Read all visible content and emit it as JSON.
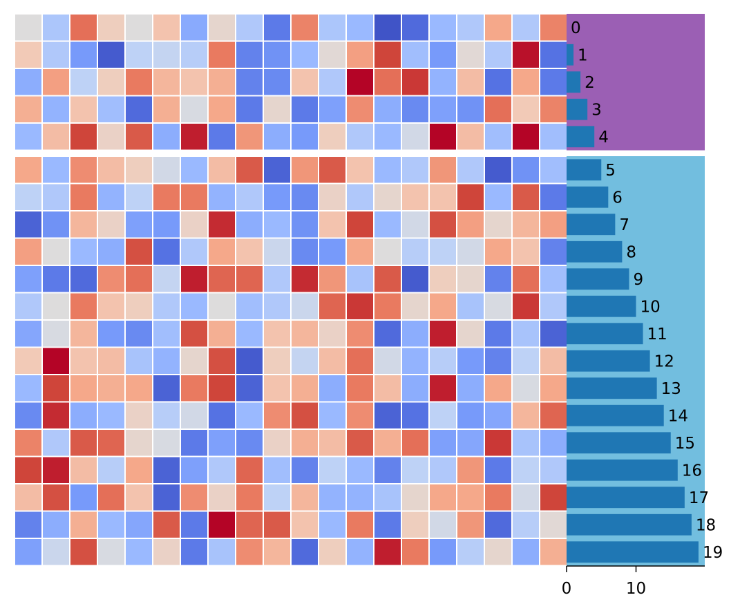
{
  "chart_data": [
    {
      "type": "heatmap",
      "title": "",
      "colormap": "coolwarm",
      "cell_border_color": "#ffffff",
      "n_rows": 20,
      "n_cols": 20,
      "value_range": [
        0,
        1
      ],
      "row_groups": [
        [
          0,
          4
        ],
        [
          5,
          19
        ]
      ],
      "values": [
        [
          0.5,
          0.35,
          0.82,
          0.58,
          0.5,
          0.62,
          0.25,
          0.54,
          0.36,
          0.12,
          0.78,
          0.35,
          0.3,
          0.02,
          0.08,
          0.3,
          0.36,
          0.7,
          0.36,
          0.78
        ],
        [
          0.6,
          0.36,
          0.2,
          0.04,
          0.4,
          0.42,
          0.38,
          0.8,
          0.14,
          0.18,
          0.3,
          0.52,
          0.72,
          0.9,
          0.32,
          0.2,
          0.52,
          0.36,
          0.98,
          0.1
        ],
        [
          0.26,
          0.72,
          0.4,
          0.58,
          0.8,
          0.66,
          0.62,
          0.68,
          0.14,
          0.16,
          0.62,
          0.36,
          1.0,
          0.82,
          0.92,
          0.28,
          0.64,
          0.1,
          0.7,
          0.12
        ],
        [
          0.68,
          0.28,
          0.62,
          0.32,
          0.08,
          0.68,
          0.48,
          0.7,
          0.12,
          0.54,
          0.12,
          0.22,
          0.76,
          0.26,
          0.16,
          0.22,
          0.18,
          0.82,
          0.6,
          0.78
        ],
        [
          0.3,
          0.64,
          0.9,
          0.56,
          0.86,
          0.26,
          0.96,
          0.12,
          0.74,
          0.26,
          0.2,
          0.58,
          0.36,
          0.3,
          0.46,
          1.0,
          0.64,
          0.32,
          1.0,
          0.32
        ]
      ]
    },
    {
      "type": "heatmap",
      "colormap": "coolwarm",
      "value_range": [
        0,
        1
      ],
      "values": [
        [
          0.7,
          0.3,
          0.76,
          0.64,
          0.58,
          0.46,
          0.3,
          0.64,
          0.86,
          0.06,
          0.74,
          0.86,
          0.62,
          0.3,
          0.36,
          0.74,
          0.36,
          0.04,
          0.18,
          0.32
        ],
        [
          0.4,
          0.36,
          0.8,
          0.28,
          0.4,
          0.8,
          0.8,
          0.28,
          0.36,
          0.2,
          0.16,
          0.56,
          0.36,
          0.54,
          0.62,
          0.62,
          0.9,
          0.3,
          0.86,
          0.12
        ],
        [
          0.06,
          0.18,
          0.66,
          0.56,
          0.22,
          0.2,
          0.56,
          0.94,
          0.26,
          0.3,
          0.18,
          0.62,
          0.9,
          0.3,
          0.46,
          0.88,
          0.72,
          0.54,
          0.66,
          0.72
        ],
        [
          0.72,
          0.5,
          0.3,
          0.26,
          0.88,
          0.1,
          0.36,
          0.7,
          0.62,
          0.44,
          0.16,
          0.2,
          0.7,
          0.5,
          0.38,
          0.4,
          0.46,
          0.7,
          0.62,
          0.14
        ],
        [
          0.22,
          0.12,
          0.08,
          0.76,
          0.82,
          0.42,
          0.96,
          0.84,
          0.84,
          0.36,
          0.94,
          0.74,
          0.34,
          0.86,
          0.04,
          0.58,
          0.54,
          0.14,
          0.82,
          0.32
        ],
        [
          0.36,
          0.5,
          0.8,
          0.62,
          0.58,
          0.36,
          0.3,
          0.5,
          0.32,
          0.36,
          0.44,
          0.84,
          0.92,
          0.8,
          0.54,
          0.7,
          0.34,
          0.48,
          0.92,
          0.36
        ],
        [
          0.24,
          0.48,
          0.66,
          0.2,
          0.16,
          0.32,
          0.88,
          0.68,
          0.3,
          0.62,
          0.66,
          0.56,
          0.76,
          0.08,
          0.26,
          0.96,
          0.54,
          0.12,
          0.34,
          0.06
        ],
        [
          0.6,
          1.0,
          0.62,
          0.64,
          0.34,
          0.28,
          0.54,
          0.88,
          0.04,
          0.58,
          0.42,
          0.64,
          0.82,
          0.46,
          0.28,
          0.38,
          0.2,
          0.14,
          0.4,
          0.64
        ],
        [
          0.3,
          0.9,
          0.7,
          0.68,
          0.7,
          0.06,
          0.8,
          0.9,
          0.06,
          0.62,
          0.68,
          0.26,
          0.8,
          0.64,
          0.26,
          0.96,
          0.26,
          0.7,
          0.48,
          0.7
        ],
        [
          0.16,
          0.94,
          0.26,
          0.3,
          0.56,
          0.38,
          0.46,
          0.1,
          0.3,
          0.76,
          0.88,
          0.3,
          0.76,
          0.06,
          0.1,
          0.4,
          0.2,
          0.24,
          0.66,
          0.84
        ],
        [
          0.78,
          0.36,
          0.86,
          0.84,
          0.54,
          0.48,
          0.12,
          0.22,
          0.16,
          0.56,
          0.68,
          0.64,
          0.86,
          0.68,
          0.82,
          0.22,
          0.24,
          0.92,
          0.34,
          0.26
        ],
        [
          0.9,
          0.96,
          0.64,
          0.38,
          0.7,
          0.06,
          0.22,
          0.36,
          0.84,
          0.32,
          0.14,
          0.4,
          0.3,
          0.14,
          0.4,
          0.36,
          0.74,
          0.12,
          0.4,
          0.36
        ],
        [
          0.64,
          0.88,
          0.2,
          0.82,
          0.62,
          0.06,
          0.76,
          0.56,
          0.8,
          0.4,
          0.66,
          0.28,
          0.28,
          0.34,
          0.54,
          0.7,
          0.7,
          0.8,
          0.46,
          0.9
        ],
        [
          0.14,
          0.26,
          0.68,
          0.3,
          0.24,
          0.86,
          0.12,
          1.0,
          0.84,
          0.86,
          0.62,
          0.3,
          0.8,
          0.12,
          0.58,
          0.46,
          0.74,
          0.08,
          0.38,
          0.52
        ],
        [
          0.22,
          0.44,
          0.88,
          0.48,
          0.3,
          0.56,
          0.12,
          0.34,
          0.76,
          0.66,
          0.08,
          0.58,
          0.28,
          0.96,
          0.8,
          0.2,
          0.38,
          0.54,
          0.26,
          0.68
        ]
      ]
    },
    {
      "type": "bar",
      "orientation": "horizontal",
      "categories": [
        "0",
        "1",
        "2",
        "3",
        "4",
        "5",
        "6",
        "7",
        "8",
        "9",
        "10",
        "11",
        "12",
        "13",
        "14",
        "15",
        "16",
        "17",
        "18",
        "19"
      ],
      "values": [
        0,
        1,
        2,
        3,
        4,
        5,
        6,
        7,
        8,
        9,
        10,
        11,
        12,
        13,
        14,
        15,
        16,
        17,
        18,
        19
      ],
      "data_labels": [
        "0",
        "1",
        "2",
        "3",
        "4",
        "5",
        "6",
        "7",
        "8",
        "9",
        "10",
        "11",
        "12",
        "13",
        "14",
        "15",
        "16",
        "17",
        "18",
        "19"
      ],
      "xlim": [
        0,
        19.9
      ],
      "x_ticks": [
        "0",
        "10"
      ],
      "bar_color": "#1f77b4",
      "group_backgrounds": [
        "#9b5fb4",
        "#72bedf"
      ],
      "xlabel": "",
      "ylabel": ""
    }
  ]
}
